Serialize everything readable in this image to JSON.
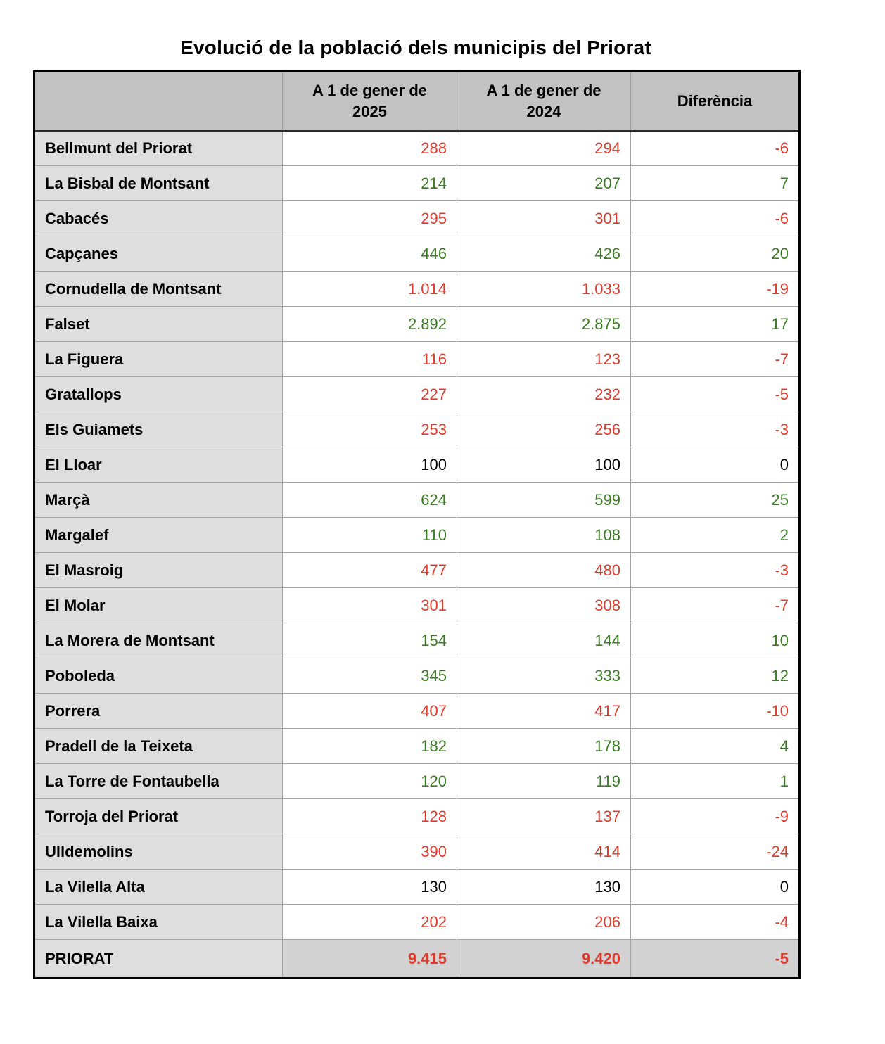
{
  "title": "Evolució de la població dels municipis del Priorat",
  "colors": {
    "negative": "#e03b2c",
    "positive": "#3a7e22",
    "neutral": "#000000",
    "header_bg": "#c2c2c2",
    "label_bg": "#dedede",
    "total_bg": "#d2d2d2"
  },
  "table": {
    "headers": {
      "municipality": "",
      "date_2025": "A 1 de gener de\n2025",
      "date_2024": "A 1 de gener de\n2024",
      "difference": "Diferència"
    },
    "rows": [
      {
        "name": "Bellmunt del Priorat",
        "pop_2025": "288",
        "pop_2024": "294",
        "difference": "-6",
        "trend": "down",
        "is_total": false
      },
      {
        "name": "La Bisbal de Montsant",
        "pop_2025": "214",
        "pop_2024": "207",
        "difference": "7",
        "trend": "up",
        "is_total": false
      },
      {
        "name": "Cabacés",
        "pop_2025": "295",
        "pop_2024": "301",
        "difference": "-6",
        "trend": "down",
        "is_total": false
      },
      {
        "name": "Capçanes",
        "pop_2025": "446",
        "pop_2024": "426",
        "difference": "20",
        "trend": "up",
        "is_total": false
      },
      {
        "name": "Cornudella de Montsant",
        "pop_2025": "1.014",
        "pop_2024": "1.033",
        "difference": "-19",
        "trend": "down",
        "is_total": false
      },
      {
        "name": "Falset",
        "pop_2025": "2.892",
        "pop_2024": "2.875",
        "difference": "17",
        "trend": "up",
        "is_total": false
      },
      {
        "name": "La Figuera",
        "pop_2025": "116",
        "pop_2024": "123",
        "difference": "-7",
        "trend": "down",
        "is_total": false
      },
      {
        "name": "Gratallops",
        "pop_2025": "227",
        "pop_2024": "232",
        "difference": "-5",
        "trend": "down",
        "is_total": false
      },
      {
        "name": "Els Guiamets",
        "pop_2025": "253",
        "pop_2024": "256",
        "difference": "-3",
        "trend": "down",
        "is_total": false
      },
      {
        "name": "El Lloar",
        "pop_2025": "100",
        "pop_2024": "100",
        "difference": "0",
        "trend": "same",
        "is_total": false
      },
      {
        "name": "Marçà",
        "pop_2025": "624",
        "pop_2024": "599",
        "difference": "25",
        "trend": "up",
        "is_total": false
      },
      {
        "name": "Margalef",
        "pop_2025": "110",
        "pop_2024": "108",
        "difference": "2",
        "trend": "up",
        "is_total": false
      },
      {
        "name": "El Masroig",
        "pop_2025": "477",
        "pop_2024": "480",
        "difference": "-3",
        "trend": "down",
        "is_total": false
      },
      {
        "name": "El Molar",
        "pop_2025": "301",
        "pop_2024": "308",
        "difference": "-7",
        "trend": "down",
        "is_total": false
      },
      {
        "name": "La Morera de Montsant",
        "pop_2025": "154",
        "pop_2024": "144",
        "difference": "10",
        "trend": "up",
        "is_total": false
      },
      {
        "name": "Poboleda",
        "pop_2025": "345",
        "pop_2024": "333",
        "difference": "12",
        "trend": "up",
        "is_total": false
      },
      {
        "name": "Porrera",
        "pop_2025": "407",
        "pop_2024": "417",
        "difference": "-10",
        "trend": "down",
        "is_total": false
      },
      {
        "name": "Pradell de la Teixeta",
        "pop_2025": "182",
        "pop_2024": "178",
        "difference": "4",
        "trend": "up",
        "is_total": false
      },
      {
        "name": "La Torre de Fontaubella",
        "pop_2025": "120",
        "pop_2024": "119",
        "difference": "1",
        "trend": "up",
        "is_total": false
      },
      {
        "name": "Torroja del Priorat",
        "pop_2025": "128",
        "pop_2024": "137",
        "difference": "-9",
        "trend": "down",
        "is_total": false
      },
      {
        "name": "Ulldemolins",
        "pop_2025": "390",
        "pop_2024": "414",
        "difference": "-24",
        "trend": "down",
        "is_total": false
      },
      {
        "name": "La Vilella Alta",
        "pop_2025": "130",
        "pop_2024": "130",
        "difference": "0",
        "trend": "same",
        "is_total": false
      },
      {
        "name": "La Vilella Baixa",
        "pop_2025": "202",
        "pop_2024": "206",
        "difference": "-4",
        "trend": "down",
        "is_total": false
      },
      {
        "name": "PRIORAT",
        "pop_2025": "9.415",
        "pop_2024": "9.420",
        "difference": "-5",
        "trend": "down",
        "is_total": true
      }
    ]
  }
}
